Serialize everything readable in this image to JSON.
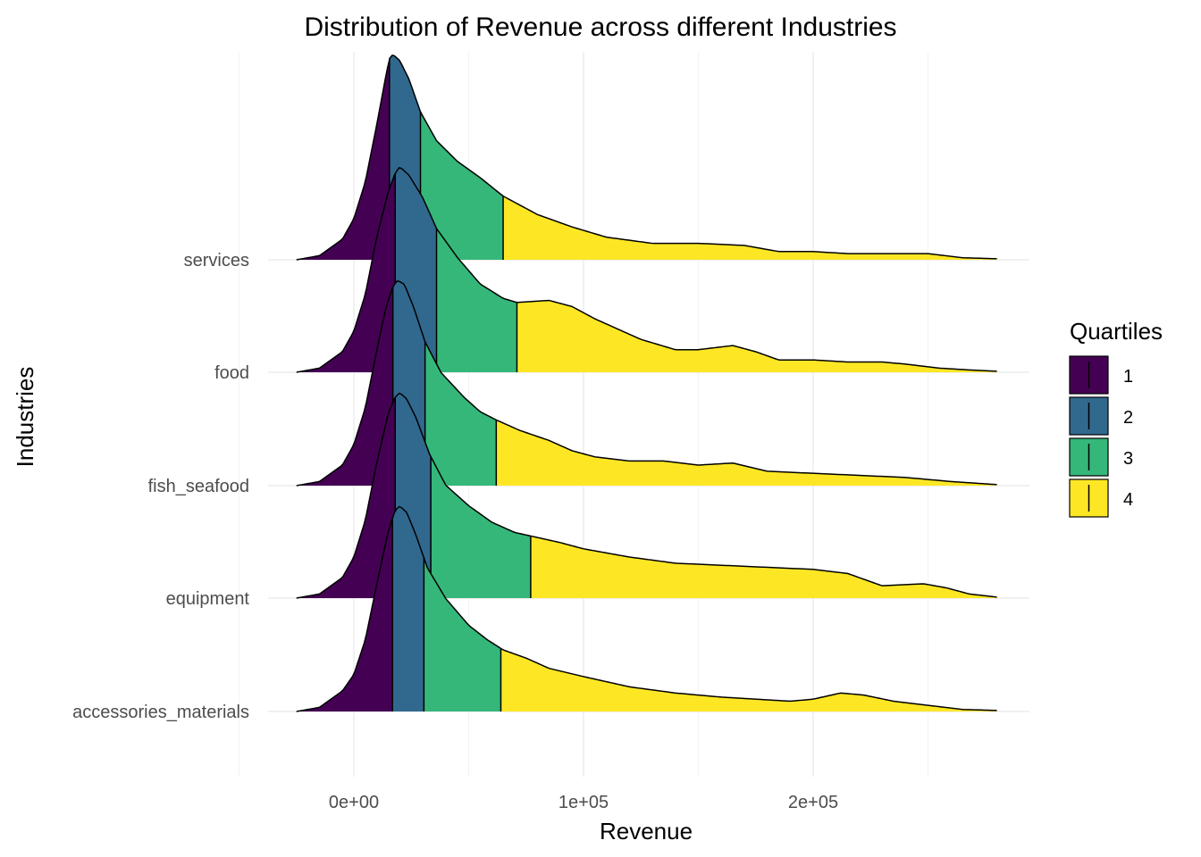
{
  "chart_data": {
    "type": "ridgeline",
    "title": "Distribution of Revenue across different Industries",
    "xlabel": "Revenue",
    "ylabel": "Industries",
    "x_ticks": [
      {
        "value": 0,
        "label": "0e+00"
      },
      {
        "value": 100000,
        "label": "1e+05"
      },
      {
        "value": 200000,
        "label": "2e+05"
      }
    ],
    "xlim": [
      -30000,
      290000
    ],
    "grid": true,
    "legend": {
      "title": "Quartiles",
      "placement": "right",
      "entries": [
        {
          "label": "1",
          "color": "#440154"
        },
        {
          "label": "2",
          "color": "#31688E"
        },
        {
          "label": "3",
          "color": "#35B779"
        },
        {
          "label": "4",
          "color": "#FDE725"
        }
      ]
    },
    "series": [
      {
        "name": "accessories_materials",
        "quartile_breaks": [
          16800,
          30500,
          64000
        ],
        "density_curve": [
          [
            -25000,
            0
          ],
          [
            -15000,
            0.02
          ],
          [
            -5000,
            0.1
          ],
          [
            0,
            0.18
          ],
          [
            5000,
            0.35
          ],
          [
            10000,
            0.62
          ],
          [
            15000,
            0.88
          ],
          [
            18000,
            0.98
          ],
          [
            20000,
            1.0
          ],
          [
            23000,
            0.97
          ],
          [
            27000,
            0.86
          ],
          [
            32000,
            0.7
          ],
          [
            40000,
            0.55
          ],
          [
            50000,
            0.42
          ],
          [
            58000,
            0.35
          ],
          [
            65000,
            0.3
          ],
          [
            75000,
            0.26
          ],
          [
            85000,
            0.21
          ],
          [
            100000,
            0.17
          ],
          [
            120000,
            0.12
          ],
          [
            140000,
            0.09
          ],
          [
            160000,
            0.07
          ],
          [
            175000,
            0.06
          ],
          [
            190000,
            0.05
          ],
          [
            200000,
            0.06
          ],
          [
            212000,
            0.09
          ],
          [
            222000,
            0.08
          ],
          [
            235000,
            0.05
          ],
          [
            250000,
            0.03
          ],
          [
            265000,
            0.01
          ],
          [
            280000,
            0.005
          ]
        ]
      },
      {
        "name": "equipment",
        "quartile_breaks": [
          18000,
          33500,
          77000
        ],
        "density_curve": [
          [
            -25000,
            0
          ],
          [
            -15000,
            0.02
          ],
          [
            -5000,
            0.1
          ],
          [
            0,
            0.2
          ],
          [
            5000,
            0.38
          ],
          [
            10000,
            0.66
          ],
          [
            15000,
            0.9
          ],
          [
            18000,
            0.98
          ],
          [
            20000,
            1.0
          ],
          [
            23000,
            0.97
          ],
          [
            27000,
            0.88
          ],
          [
            33000,
            0.7
          ],
          [
            40000,
            0.55
          ],
          [
            50000,
            0.45
          ],
          [
            60000,
            0.37
          ],
          [
            70000,
            0.32
          ],
          [
            78000,
            0.3
          ],
          [
            90000,
            0.27
          ],
          [
            100000,
            0.24
          ],
          [
            120000,
            0.2
          ],
          [
            140000,
            0.17
          ],
          [
            160000,
            0.16
          ],
          [
            180000,
            0.15
          ],
          [
            200000,
            0.14
          ],
          [
            215000,
            0.12
          ],
          [
            230000,
            0.06
          ],
          [
            248000,
            0.07
          ],
          [
            258000,
            0.05
          ],
          [
            268000,
            0.02
          ],
          [
            280000,
            0.005
          ]
        ]
      },
      {
        "name": "fish_seafood",
        "quartile_breaks": [
          17000,
          31000,
          62000
        ],
        "density_curve": [
          [
            -25000,
            0
          ],
          [
            -15000,
            0.02
          ],
          [
            -5000,
            0.1
          ],
          [
            0,
            0.2
          ],
          [
            5000,
            0.38
          ],
          [
            10000,
            0.66
          ],
          [
            14000,
            0.87
          ],
          [
            17000,
            0.97
          ],
          [
            19000,
            1.0
          ],
          [
            22000,
            0.98
          ],
          [
            26000,
            0.87
          ],
          [
            31000,
            0.7
          ],
          [
            38000,
            0.55
          ],
          [
            48000,
            0.43
          ],
          [
            55000,
            0.36
          ],
          [
            62000,
            0.32
          ],
          [
            72000,
            0.27
          ],
          [
            85000,
            0.22
          ],
          [
            95000,
            0.17
          ],
          [
            105000,
            0.14
          ],
          [
            120000,
            0.12
          ],
          [
            135000,
            0.12
          ],
          [
            150000,
            0.1
          ],
          [
            165000,
            0.11
          ],
          [
            180000,
            0.07
          ],
          [
            200000,
            0.06
          ],
          [
            220000,
            0.05
          ],
          [
            240000,
            0.04
          ],
          [
            260000,
            0.02
          ],
          [
            280000,
            0.005
          ]
        ]
      },
      {
        "name": "food",
        "quartile_breaks": [
          18000,
          36000,
          71000
        ],
        "density_curve": [
          [
            -25000,
            0
          ],
          [
            -15000,
            0.02
          ],
          [
            -5000,
            0.1
          ],
          [
            0,
            0.2
          ],
          [
            5000,
            0.38
          ],
          [
            10000,
            0.66
          ],
          [
            15000,
            0.88
          ],
          [
            18000,
            0.97
          ],
          [
            20000,
            1.0
          ],
          [
            24000,
            0.96
          ],
          [
            30000,
            0.85
          ],
          [
            36000,
            0.7
          ],
          [
            45000,
            0.56
          ],
          [
            55000,
            0.43
          ],
          [
            65000,
            0.36
          ],
          [
            71000,
            0.34
          ],
          [
            85000,
            0.35
          ],
          [
            95000,
            0.32
          ],
          [
            105000,
            0.26
          ],
          [
            125000,
            0.16
          ],
          [
            140000,
            0.11
          ],
          [
            150000,
            0.11
          ],
          [
            165000,
            0.13
          ],
          [
            175000,
            0.1
          ],
          [
            185000,
            0.06
          ],
          [
            200000,
            0.06
          ],
          [
            215000,
            0.05
          ],
          [
            230000,
            0.05
          ],
          [
            240000,
            0.04
          ],
          [
            255000,
            0.02
          ],
          [
            270000,
            0.01
          ],
          [
            280000,
            0.005
          ]
        ]
      },
      {
        "name": "services",
        "quartile_breaks": [
          15500,
          29000,
          65000
        ],
        "density_curve": [
          [
            -25000,
            0
          ],
          [
            -15000,
            0.02
          ],
          [
            -5000,
            0.1
          ],
          [
            0,
            0.2
          ],
          [
            5000,
            0.38
          ],
          [
            10000,
            0.66
          ],
          [
            14000,
            0.9
          ],
          [
            15500,
            0.98
          ],
          [
            17000,
            1.0
          ],
          [
            20000,
            0.97
          ],
          [
            24000,
            0.88
          ],
          [
            29000,
            0.72
          ],
          [
            36000,
            0.58
          ],
          [
            45000,
            0.48
          ],
          [
            55000,
            0.4
          ],
          [
            65000,
            0.31
          ],
          [
            80000,
            0.22
          ],
          [
            95000,
            0.16
          ],
          [
            110000,
            0.11
          ],
          [
            130000,
            0.08
          ],
          [
            150000,
            0.08
          ],
          [
            170000,
            0.07
          ],
          [
            185000,
            0.04
          ],
          [
            200000,
            0.04
          ],
          [
            215000,
            0.03
          ],
          [
            235000,
            0.03
          ],
          [
            250000,
            0.03
          ],
          [
            265000,
            0.01
          ],
          [
            280000,
            0.005
          ]
        ]
      }
    ]
  }
}
